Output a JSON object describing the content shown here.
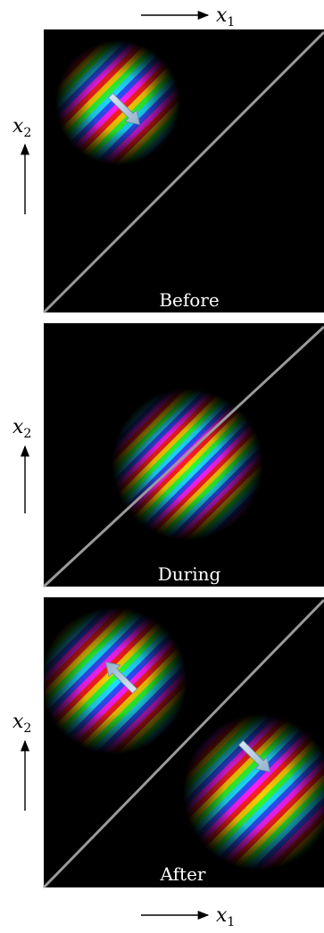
{
  "axes": {
    "x_label": {
      "base": "x",
      "sub": "1"
    },
    "y_label": {
      "base": "x",
      "sub": "2"
    }
  },
  "colors": {
    "panel_background": "#000000",
    "diagonal_line": "#9a9a9a",
    "arrow_fill": "#b8c8d8",
    "stripe_palette": [
      "#ff2020",
      "#ffd000",
      "#30ff30",
      "#20e0ff",
      "#3050ff",
      "#ff20ff"
    ]
  },
  "panels": [
    {
      "id": "before",
      "caption": "Before"
    },
    {
      "id": "during",
      "caption": "During"
    },
    {
      "id": "after",
      "caption": "After"
    }
  ]
}
